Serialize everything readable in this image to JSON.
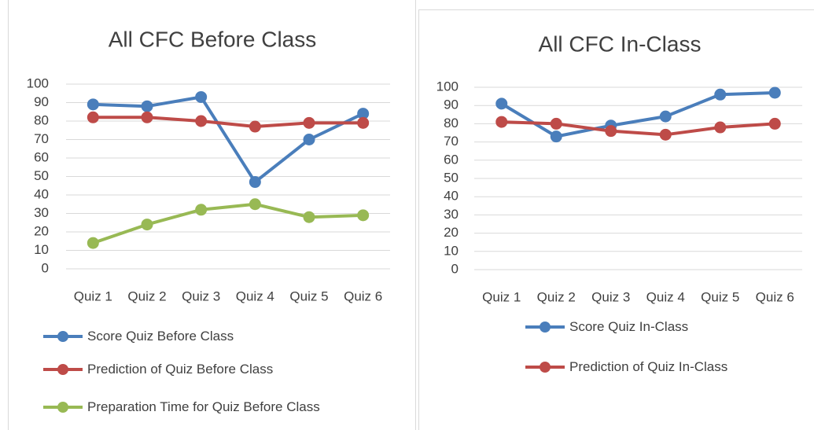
{
  "chart_data": [
    {
      "type": "line",
      "title": "All CFC Before Class",
      "categories": [
        "Quiz 1",
        "Quiz 2",
        "Quiz 3",
        "Quiz 4",
        "Quiz 5",
        "Quiz 6"
      ],
      "series": [
        {
          "name": "Score Quiz Before Class",
          "color": "#4a7ebb",
          "values": [
            89,
            88,
            93,
            47,
            70,
            84
          ]
        },
        {
          "name": "Prediction of Quiz Before Class",
          "color": "#be4b48",
          "values": [
            82,
            82,
            80,
            77,
            79,
            79
          ]
        },
        {
          "name": "Preparation Time for Quiz Before Class",
          "color": "#98b954",
          "values": [
            14,
            24,
            32,
            35,
            28,
            29
          ]
        }
      ],
      "ylim": [
        0,
        100
      ],
      "yticks": [
        0,
        10,
        20,
        30,
        40,
        50,
        60,
        70,
        80,
        90,
        100
      ],
      "grid": true,
      "legend": "bottom"
    },
    {
      "type": "line",
      "title": "All CFC In-Class",
      "categories": [
        "Quiz 1",
        "Quiz 2",
        "Quiz 3",
        "Quiz 4",
        "Quiz 5",
        "Quiz 6"
      ],
      "series": [
        {
          "name": "Score Quiz In-Class",
          "color": "#4a7ebb",
          "values": [
            91,
            73,
            79,
            84,
            96,
            97
          ]
        },
        {
          "name": "Prediction of Quiz In-Class",
          "color": "#be4b48",
          "values": [
            81,
            80,
            76,
            74,
            78,
            80
          ]
        }
      ],
      "ylim": [
        0,
        100
      ],
      "yticks": [
        0,
        10,
        20,
        30,
        40,
        50,
        60,
        70,
        80,
        90,
        100
      ],
      "grid": true,
      "legend": "bottom"
    }
  ]
}
